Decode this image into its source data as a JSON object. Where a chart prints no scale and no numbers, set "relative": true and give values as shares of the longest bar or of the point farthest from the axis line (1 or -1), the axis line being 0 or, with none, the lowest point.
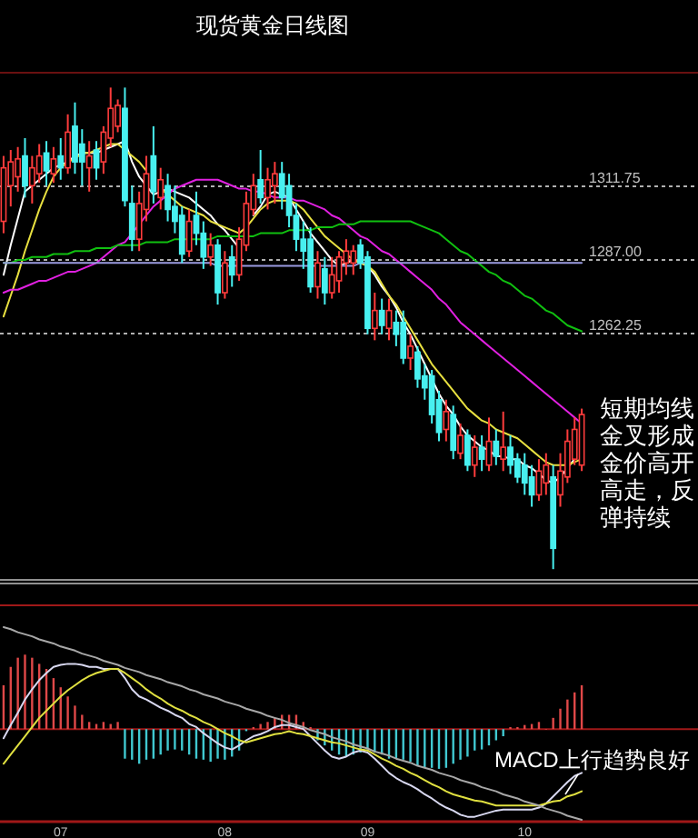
{
  "chart_data": [
    {
      "type": "candlestick",
      "title": "现货黄金日线图",
      "tick_labels": "y",
      "grid": "y",
      "categories": [
        null,
        null,
        null,
        null,
        null,
        null,
        null,
        null,
        null,
        null,
        null,
        null,
        null,
        null,
        null,
        null,
        null,
        null,
        null,
        null,
        null,
        null,
        null,
        null,
        null,
        null,
        null,
        null,
        null,
        null,
        null,
        null,
        null,
        null,
        null,
        null,
        null,
        null,
        null,
        null,
        null,
        null,
        null,
        null,
        null,
        null,
        null,
        null,
        null,
        null,
        null,
        null,
        null,
        null,
        null,
        null,
        null,
        null,
        null,
        null,
        null,
        null,
        null,
        null,
        null,
        null,
        null,
        null,
        null,
        null,
        null,
        null,
        null,
        null,
        null,
        null,
        null,
        null,
        null,
        null,
        null,
        null
      ],
      "ylim": [
        1180,
        1350
      ],
      "yticks": [
        {
          "value": 1262.25,
          "label": "1262.25"
        },
        {
          "value": 1287,
          "label": "1287.00"
        },
        {
          "value": 1311.75,
          "label": "1311.75"
        }
      ],
      "ohlc": [
        [
          1300,
          1322,
          1296,
          1318
        ],
        [
          1312,
          1324,
          1305,
          1320
        ],
        [
          1315,
          1325,
          1310,
          1321
        ],
        [
          1322,
          1328,
          1308,
          1312
        ],
        [
          1312,
          1322,
          1306,
          1318
        ],
        [
          1316,
          1326,
          1313,
          1322
        ],
        [
          1323,
          1327,
          1312,
          1317
        ],
        [
          1316,
          1325,
          1313,
          1321
        ],
        [
          1322,
          1328,
          1314,
          1318
        ],
        [
          1318,
          1336,
          1316,
          1330
        ],
        [
          1332,
          1340,
          1316,
          1320
        ],
        [
          1326,
          1331,
          1312,
          1320
        ],
        [
          1318,
          1327,
          1310,
          1322
        ],
        [
          1324,
          1327,
          1314,
          1318
        ],
        [
          1320,
          1332,
          1316,
          1330
        ],
        [
          1328,
          1345,
          1325,
          1338
        ],
        [
          1332,
          1341,
          1330,
          1339
        ],
        [
          1338,
          1345,
          1305,
          1307
        ],
        [
          1306,
          1312,
          1290,
          1294
        ],
        [
          1294,
          1310,
          1290,
          1306
        ],
        [
          1304,
          1322,
          1300,
          1316
        ],
        [
          1322,
          1332,
          1306,
          1310
        ],
        [
          1308,
          1318,
          1304,
          1314
        ],
        [
          1312,
          1316,
          1300,
          1304
        ],
        [
          1305,
          1312,
          1296,
          1300
        ],
        [
          1302,
          1305,
          1286,
          1289
        ],
        [
          1290,
          1304,
          1288,
          1300
        ],
        [
          1302,
          1310,
          1292,
          1296
        ],
        [
          1296,
          1300,
          1284,
          1288
        ],
        [
          1288,
          1296,
          1285,
          1292
        ],
        [
          1292,
          1294,
          1272,
          1276
        ],
        [
          1276,
          1290,
          1274,
          1286
        ],
        [
          1288,
          1292,
          1278,
          1282
        ],
        [
          1282,
          1298,
          1280,
          1294
        ],
        [
          1292,
          1310,
          1290,
          1306
        ],
        [
          1304,
          1316,
          1302,
          1312
        ],
        [
          1314,
          1324,
          1306,
          1308
        ],
        [
          1308,
          1318,
          1304,
          1314
        ],
        [
          1312,
          1320,
          1306,
          1316
        ],
        [
          1316,
          1320,
          1304,
          1308
        ],
        [
          1312,
          1316,
          1298,
          1302
        ],
        [
          1302,
          1306,
          1290,
          1294
        ],
        [
          1294,
          1300,
          1284,
          1290
        ],
        [
          1294,
          1298,
          1276,
          1278
        ],
        [
          1278,
          1290,
          1274,
          1286
        ],
        [
          1284,
          1288,
          1272,
          1276
        ],
        [
          1276,
          1288,
          1274,
          1282
        ],
        [
          1280,
          1290,
          1276,
          1288
        ],
        [
          1286,
          1294,
          1282,
          1290
        ],
        [
          1286,
          1292,
          1282,
          1290
        ],
        [
          1292,
          1294,
          1284,
          1286
        ],
        [
          1288,
          1290,
          1262,
          1264
        ],
        [
          1264,
          1276,
          1260,
          1270
        ],
        [
          1270,
          1274,
          1262,
          1265
        ],
        [
          1264,
          1274,
          1260,
          1270
        ],
        [
          1266,
          1270,
          1258,
          1262
        ],
        [
          1266,
          1270,
          1252,
          1254
        ],
        [
          1254,
          1262,
          1250,
          1258
        ],
        [
          1256,
          1258,
          1244,
          1247
        ],
        [
          1248,
          1252,
          1240,
          1244
        ],
        [
          1248,
          1250,
          1232,
          1235
        ],
        [
          1240,
          1243,
          1226,
          1229
        ],
        [
          1230,
          1240,
          1226,
          1236
        ],
        [
          1235,
          1238,
          1220,
          1223
        ],
        [
          1222,
          1232,
          1220,
          1228
        ],
        [
          1228,
          1230,
          1216,
          1218
        ],
        [
          1218,
          1228,
          1214,
          1224
        ],
        [
          1224,
          1228,
          1216,
          1220
        ],
        [
          1218,
          1234,
          1216,
          1226
        ],
        [
          1226,
          1230,
          1218,
          1221
        ],
        [
          1220,
          1236,
          1216,
          1224
        ],
        [
          1224,
          1228,
          1215,
          1218
        ],
        [
          1220,
          1222,
          1212,
          1214
        ],
        [
          1218,
          1222,
          1208,
          1212
        ],
        [
          1214,
          1218,
          1204,
          1208
        ],
        [
          1208,
          1220,
          1206,
          1216
        ],
        [
          1212,
          1222,
          1208,
          1218
        ],
        [
          1214,
          1218,
          1183,
          1190
        ],
        [
          1208,
          1222,
          1204,
          1216
        ],
        [
          1214,
          1230,
          1212,
          1226
        ],
        [
          1220,
          1234,
          1218,
          1230
        ],
        [
          1218,
          1237,
          1216,
          1235
        ]
      ],
      "series": [
        {
          "type": "line",
          "color": "#ffffff",
          "values": [
            1282,
            1292,
            1301,
            1310,
            1312,
            1314,
            1316,
            1318,
            1319,
            1320,
            1322,
            1323,
            1323,
            1323,
            1324,
            1325,
            1326,
            1327,
            1320,
            1315,
            1312,
            1309,
            1310,
            1311,
            1310,
            1309,
            1308,
            1306,
            1304,
            1302,
            1299,
            1297,
            1294,
            1291,
            null,
            1302,
            1305,
            1309,
            1310,
            1309,
            1308,
            1304,
            1300,
            1296,
            1293,
            1290,
            1287,
            1285,
            1286,
            1287,
            1286,
            1285,
            1282,
            1278,
            1275,
            1271,
            1266,
            1262,
            1257,
            1252,
            1247,
            1242,
            1238,
            1235,
            1231,
            1228,
            1226,
            1224,
            1223,
            1221,
            1221,
            1220,
            1220,
            1218,
            1217,
            1215,
            1213,
            1212,
            1214,
            1217,
            1220,
            null
          ]
        },
        {
          "type": "line",
          "color": "#e8e040",
          "values": [
            1268,
            1275,
            1282,
            1290,
            1297,
            1304,
            1310,
            1315,
            1318,
            1320,
            1321,
            1323,
            1323,
            1324,
            1325,
            1326,
            1326,
            1324,
            1322,
            1320,
            1317,
            null,
            1311,
            1309,
            1307,
            1305,
            1304,
            1303,
            1302,
            1300,
            1299,
            1298,
            1297,
            1296,
            1298,
            1301,
            1304,
            1306,
            1307,
            1307,
            1307,
            1306,
            1304,
            1301,
            1298,
            1295,
            1293,
            1291,
            1289,
            1287,
            1286,
            1285,
            1283,
            1279,
            1275,
            1272,
            1268,
            1264,
            1260,
            1256,
            1252,
            1249,
            1246,
            1243,
            1240,
            1237,
            1235,
            1233,
            1232,
            1230,
            1229,
            1228,
            1227,
            1225,
            1223,
            1221,
            1219,
            1218,
            1218,
            1218,
            1219,
            1220
          ]
        },
        {
          "type": "line",
          "color": "#e020e0",
          "values": [
            1276,
            1277,
            1277,
            1278,
            1279,
            1280,
            1280,
            1281,
            1282,
            1283,
            1283,
            1284,
            1285,
            1286,
            1288,
            1290,
            1292,
            1293,
            1296,
            1299,
            1302,
            1305,
            1307,
            1309,
            1311,
            1312,
            1313,
            1314,
            1314,
            1314,
            1314,
            1313,
            1312,
            1311,
            1311,
            1310,
            1310,
            1309,
            1308,
            1308,
            1308,
            1307,
            1307,
            1306,
            1305,
            1304,
            1302,
            1301,
            1299,
            1297,
            1295,
            1294,
            1292,
            1290,
            1289,
            1287,
            1285,
            1283,
            1281,
            1279,
            1277,
            1274,
            1272,
            1269,
            1266,
            1264,
            1262,
            1260,
            1258,
            1256,
            1254,
            1252,
            1250,
            1248,
            1246,
            1244,
            1242,
            1240,
            1238,
            1236,
            1234,
            1232
          ]
        },
        {
          "type": "line",
          "color": "#10c010",
          "values": [
            1286,
            1286,
            1287,
            1287,
            1288,
            1288,
            1288,
            1289,
            1289,
            1289,
            1290,
            1290,
            1290,
            1291,
            1291,
            1291,
            1292,
            1292,
            1292,
            1292,
            1293,
            1293,
            1293,
            1293,
            1294,
            1294,
            1294,
            1294,
            1294,
            1294,
            1295,
            1295,
            1295,
            1295,
            1295,
            1295,
            1296,
            1296,
            1296,
            1296,
            1297,
            1297,
            1297,
            1297,
            1298,
            1298,
            1298,
            1299,
            1299,
            1299,
            1300,
            1300,
            1300,
            1300,
            1300,
            1300,
            1300,
            1300,
            1299,
            1298,
            1297,
            1296,
            1294,
            1292,
            1290,
            1289,
            1287,
            1285,
            1283,
            1282,
            1280,
            1279,
            1277,
            1275,
            1274,
            1272,
            1270,
            1269,
            1267,
            1265,
            1264,
            1263
          ]
        },
        {
          "type": "line",
          "color": "#9a9ae0",
          "values": [
            1286,
            1286,
            1286,
            1286,
            1286,
            1286,
            1286,
            1286,
            1286,
            1286,
            1286,
            1286,
            1286,
            1286,
            1286,
            1286,
            1286,
            1286,
            1286,
            1286,
            1286,
            1286,
            1286,
            1286,
            1286,
            1286,
            1286,
            1286,
            1286,
            1286,
            1285,
            1285,
            1285,
            1285,
            1285,
            1285,
            1285,
            1285,
            1285,
            1285,
            1285,
            1285,
            1285,
            1285,
            1285,
            1285,
            1285,
            1285,
            1285,
            1285,
            1286,
            1286,
            1286,
            1286,
            1286,
            1286,
            1286,
            1286,
            1286,
            1286,
            1286,
            1286,
            1286,
            1286,
            1286,
            1286,
            1286,
            1286,
            1286,
            1286,
            1286,
            1286,
            1286,
            1286,
            1286,
            1286,
            1286,
            1286,
            1286,
            1286,
            1286,
            1286
          ]
        }
      ],
      "annotations": [
        "短期均线金叉形成金价高开高走，反弹持续"
      ]
    },
    {
      "type": "bar",
      "relative": true,
      "tick_labels": "x",
      "ref_lines": [
        {
          "axis": "y",
          "value": 0,
          "color": "#a01818"
        }
      ],
      "categories": [
        null,
        null,
        null,
        null,
        null,
        null,
        null,
        null,
        "07",
        null,
        null,
        null,
        null,
        null,
        null,
        null,
        null,
        null,
        null,
        null,
        null,
        null,
        null,
        null,
        null,
        null,
        null,
        null,
        null,
        null,
        null,
        "08",
        null,
        null,
        null,
        null,
        null,
        null,
        null,
        null,
        null,
        null,
        null,
        null,
        null,
        null,
        null,
        null,
        null,
        null,
        null,
        "09",
        null,
        null,
        null,
        null,
        null,
        null,
        null,
        null,
        null,
        null,
        null,
        null,
        null,
        null,
        null,
        null,
        null,
        null,
        null,
        null,
        null,
        "10",
        null,
        null,
        null,
        null,
        null,
        null,
        null,
        null
      ],
      "series": [
        {
          "type": "bar",
          "values": [
            0.43,
            0.61,
            0.7,
            0.73,
            0.7,
            0.64,
            0.59,
            0.5,
            0.41,
            0.32,
            0.23,
            0.14,
            0.07,
            0.05,
            0.07,
            0.05,
            0.07,
            -0.29,
            -0.3,
            -0.34,
            -0.3,
            -0.29,
            -0.25,
            -0.21,
            -0.2,
            -0.21,
            -0.25,
            -0.29,
            -0.3,
            -0.32,
            -0.29,
            -0.3,
            -0.27,
            -0.21,
            -0.02,
            0.02,
            0.05,
            0.07,
            0.11,
            0.14,
            0.14,
            0.14,
            0.07,
            0.02,
            -0.11,
            -0.16,
            -0.21,
            -0.25,
            -0.27,
            -0.25,
            -0.23,
            -0.2,
            -0.23,
            -0.25,
            -0.29,
            -0.29,
            -0.3,
            -0.32,
            -0.36,
            -0.38,
            -0.38,
            -0.39,
            -0.38,
            -0.34,
            -0.3,
            -0.27,
            -0.21,
            -0.2,
            -0.16,
            -0.11,
            -0.07,
            0.02,
            0.02,
            0.04,
            0.05,
            0.07,
            0,
            0.11,
            0.2,
            0.29,
            0.36,
            0.43
          ],
          "colors": [
            "#e04848",
            "#e04848",
            "#e04848",
            "#e04848",
            "#e04848",
            "#e04848",
            "#e04848",
            "#e04848",
            "#e04848",
            "#e04848",
            "#e04848",
            "#e04848",
            "#e04848",
            "#e04848",
            "#e04848",
            "#e04848",
            "#e04848",
            "#40c8d0",
            "#40c8d0",
            "#40c8d0",
            "#40c8d0",
            "#40c8d0",
            "#40c8d0",
            "#40c8d0",
            "#40c8d0",
            "#40c8d0",
            "#40c8d0",
            "#40c8d0",
            "#40c8d0",
            "#40c8d0",
            "#40c8d0",
            "#40c8d0",
            "#40c8d0",
            "#40c8d0",
            "#40c8d0",
            "#e04848",
            "#e04848",
            "#e04848",
            "#e04848",
            "#e04848",
            "#e04848",
            "#e04848",
            "#e04848",
            "#e04848",
            "#40c8d0",
            "#40c8d0",
            "#40c8d0",
            "#40c8d0",
            "#40c8d0",
            "#40c8d0",
            "#40c8d0",
            "#40c8d0",
            "#40c8d0",
            "#40c8d0",
            "#40c8d0",
            "#40c8d0",
            "#40c8d0",
            "#40c8d0",
            "#40c8d0",
            "#40c8d0",
            "#40c8d0",
            "#40c8d0",
            "#40c8d0",
            "#40c8d0",
            "#40c8d0",
            "#40c8d0",
            "#40c8d0",
            "#40c8d0",
            "#40c8d0",
            "#40c8d0",
            "#40c8d0",
            "#e04848",
            "#e04848",
            "#e04848",
            "#e04848",
            "#e04848",
            "#e04848",
            "#e04848",
            "#e04848",
            "#e04848",
            "#e04848",
            "#e04848"
          ]
        },
        {
          "type": "line",
          "color": "#d8d8f0",
          "values": [
            -0.09,
            0.04,
            0.16,
            0.29,
            0.39,
            0.48,
            0.55,
            0.61,
            0.63,
            0.64,
            0.64,
            0.63,
            0.61,
            0.61,
            0.59,
            0.59,
            0.59,
            0.5,
            0.39,
            0.32,
            0.29,
            0.25,
            0.21,
            0.18,
            0.14,
            0.11,
            0.05,
            0.02,
            -0.04,
            -0.09,
            -0.14,
            -0.18,
            -0.2,
            -0.16,
            -0.11,
            -0.07,
            -0.05,
            -0.02,
            0.02,
            0.04,
            0.04,
            0.02,
            0,
            -0.07,
            -0.14,
            -0.21,
            -0.27,
            -0.29,
            -0.27,
            -0.23,
            -0.21,
            -0.23,
            -0.29,
            -0.36,
            -0.43,
            -0.48,
            -0.52,
            -0.55,
            -0.59,
            -0.64,
            -0.68,
            -0.73,
            -0.77,
            -0.8,
            -0.84,
            -0.86,
            -0.86,
            -0.84,
            -0.82,
            -0.8,
            -0.79,
            -0.79,
            -0.79,
            -0.79,
            -0.79,
            -0.77,
            -0.73,
            -0.66,
            -0.59,
            -0.52,
            -0.46,
            -0.43
          ]
        },
        {
          "type": "line",
          "color": "#e0e040",
          "values": [
            -0.34,
            -0.25,
            -0.16,
            -0.07,
            0.02,
            0.11,
            0.18,
            0.25,
            0.32,
            0.38,
            0.43,
            0.48,
            0.52,
            0.55,
            0.57,
            0.59,
            0.59,
            0.55,
            0.5,
            0.45,
            0.39,
            0.34,
            0.3,
            0.25,
            0.21,
            0.18,
            0.14,
            0.11,
            0.07,
            0.04,
            0,
            -0.04,
            -0.07,
            -0.11,
            -0.13,
            -0.11,
            -0.09,
            -0.07,
            -0.05,
            -0.04,
            -0.02,
            -0.04,
            -0.05,
            -0.07,
            -0.09,
            -0.11,
            -0.13,
            -0.14,
            -0.16,
            -0.18,
            -0.2,
            -0.21,
            -0.25,
            -0.29,
            -0.32,
            -0.36,
            -0.39,
            -0.43,
            -0.46,
            -0.5,
            -0.54,
            -0.57,
            -0.61,
            -0.64,
            -0.66,
            -0.68,
            -0.7,
            -0.71,
            -0.73,
            -0.75,
            -0.75,
            -0.75,
            -0.75,
            -0.75,
            -0.75,
            -0.75,
            -0.73,
            -0.71,
            -0.7,
            -0.66,
            -0.64,
            -0.61
          ]
        },
        {
          "type": "line",
          "color": "#a8a8a8",
          "values": [
            1.0,
            0.98,
            0.95,
            0.93,
            0.91,
            0.88,
            0.86,
            0.84,
            0.81,
            0.79,
            0.77,
            0.74,
            0.72,
            0.7,
            0.67,
            0.65,
            0.63,
            0.6,
            0.58,
            0.56,
            0.53,
            0.51,
            0.49,
            0.46,
            0.44,
            0.42,
            0.39,
            0.37,
            0.34,
            0.32,
            0.3,
            0.27,
            0.25,
            0.23,
            0.2,
            0.18,
            0.16,
            0.13,
            0.11,
            0.09,
            0.06,
            0.04,
            0.02,
            -0.01,
            -0.03,
            -0.05,
            -0.08,
            -0.1,
            -0.12,
            -0.15,
            -0.17,
            -0.19,
            -0.22,
            -0.24,
            -0.26,
            -0.29,
            -0.31,
            -0.33,
            -0.36,
            -0.38,
            -0.4,
            -0.43,
            -0.45,
            -0.47,
            -0.5,
            -0.52,
            -0.54,
            -0.57,
            -0.59,
            -0.61,
            -0.64,
            -0.66,
            -0.68,
            -0.71,
            -0.73,
            -0.75,
            -0.78,
            -0.8,
            -0.82,
            -0.85,
            -0.87,
            -0.89
          ]
        }
      ],
      "annotations": [
        "MACD上行趋势良好"
      ]
    }
  ]
}
